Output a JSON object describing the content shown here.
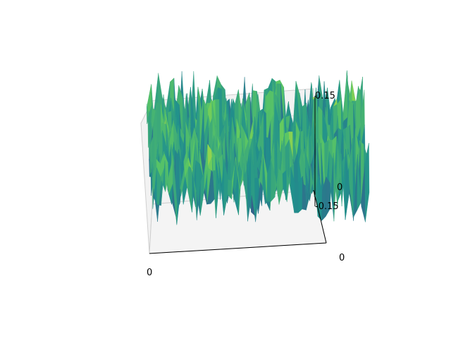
{
  "chart_data": {
    "type": "surface",
    "title": "",
    "xlabel": "",
    "ylabel": "",
    "zlabel": "",
    "colormap": "viridis",
    "grid": true,
    "legend": "none",
    "x_ticks": [
      "0"
    ],
    "y_ticks": [
      "0"
    ],
    "z_ticks": [
      "0.15",
      "0",
      "-0.15"
    ],
    "zlim": [
      -0.15,
      0.15
    ],
    "surface": {
      "rows": 18,
      "cols": 56,
      "amplitude": 0.15,
      "seed": 7
    },
    "colors": {
      "pane": "#f2f2f2",
      "pane_edge": "#cfcfcf",
      "gridline": "#d9d9d9",
      "axis": "#000000"
    }
  }
}
